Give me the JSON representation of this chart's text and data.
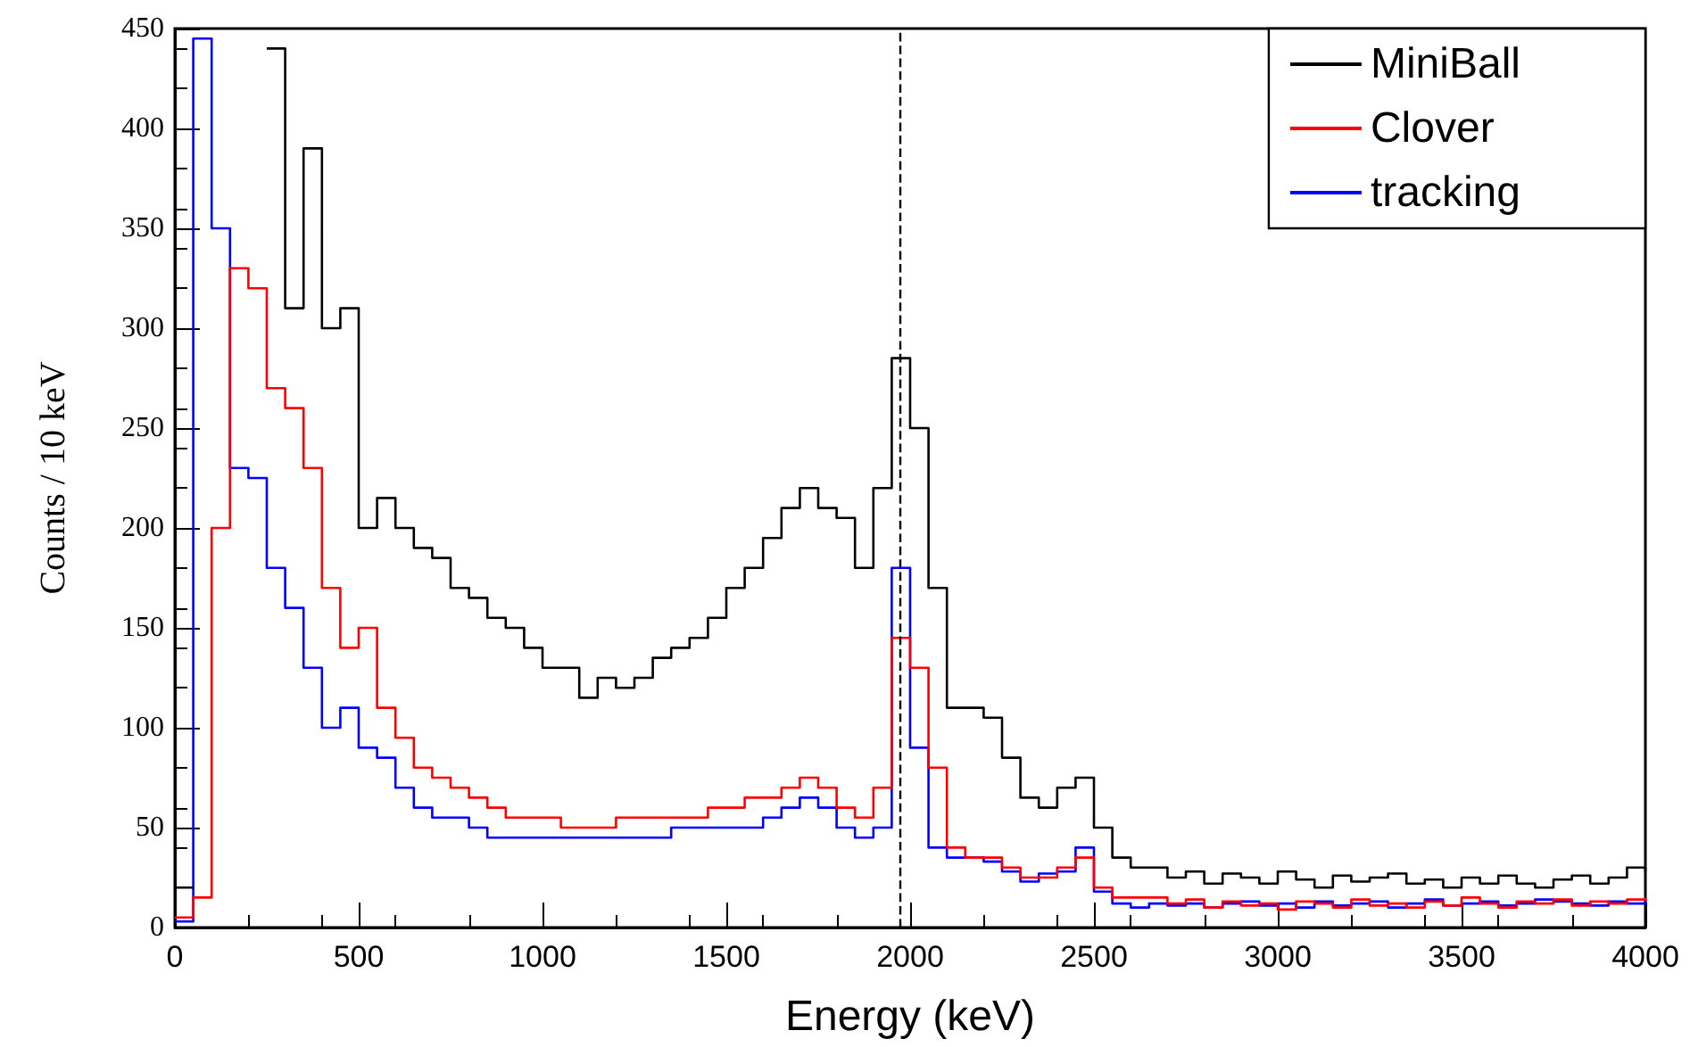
{
  "chart_data": {
    "type": "step",
    "xlabel": "Energy (keV)",
    "ylabel": "Counts / 10 keV",
    "x": [
      0,
      50,
      100,
      150,
      200,
      250,
      300,
      350,
      400,
      450,
      500,
      550,
      600,
      650,
      700,
      750,
      800,
      850,
      900,
      950,
      1000,
      1050,
      1100,
      1150,
      1200,
      1250,
      1300,
      1350,
      1400,
      1450,
      1500,
      1550,
      1600,
      1650,
      1700,
      1750,
      1800,
      1850,
      1900,
      1950,
      2000,
      2050,
      2100,
      2150,
      2200,
      2250,
      2300,
      2350,
      2400,
      2450,
      2500,
      2550,
      2600,
      2650,
      2700,
      2750,
      2800,
      2850,
      2900,
      2950,
      3000,
      3050,
      3100,
      3150,
      3200,
      3250,
      3300,
      3350,
      3400,
      3450,
      3500,
      3550,
      3600,
      3650,
      3700,
      3750,
      3800,
      3850,
      3900,
      3950,
      4000
    ],
    "series": [
      {
        "name": "MiniBall",
        "color": "#000000",
        "values": [
          20,
          null,
          null,
          null,
          null,
          440,
          310,
          390,
          300,
          310,
          200,
          215,
          200,
          190,
          185,
          170,
          165,
          155,
          150,
          140,
          130,
          130,
          115,
          125,
          120,
          125,
          135,
          140,
          145,
          155,
          170,
          180,
          195,
          210,
          220,
          210,
          205,
          180,
          220,
          285,
          250,
          170,
          110,
          110,
          105,
          85,
          65,
          60,
          70,
          75,
          50,
          35,
          30,
          30,
          25,
          28,
          22,
          27,
          25,
          22,
          28,
          24,
          20,
          26,
          23,
          25,
          27,
          22,
          24,
          20,
          25,
          22,
          26,
          22,
          20,
          24,
          26,
          22,
          25,
          30,
          28
        ]
      },
      {
        "name": "Clover",
        "color": "#ff0000",
        "values": [
          5,
          15,
          200,
          330,
          320,
          270,
          260,
          230,
          170,
          140,
          150,
          110,
          95,
          80,
          75,
          70,
          65,
          60,
          55,
          55,
          55,
          50,
          50,
          50,
          55,
          55,
          55,
          55,
          55,
          60,
          60,
          65,
          65,
          70,
          75,
          70,
          60,
          55,
          70,
          145,
          130,
          80,
          40,
          35,
          35,
          30,
          25,
          25,
          30,
          35,
          20,
          15,
          15,
          15,
          12,
          14,
          10,
          13,
          11,
          12,
          9,
          13,
          12,
          10,
          14,
          11,
          12,
          10,
          13,
          11,
          15,
          12,
          10,
          13,
          12,
          14,
          11,
          13,
          12,
          14,
          15
        ]
      },
      {
        "name": "tracking",
        "color": "#0000ff",
        "values": [
          3,
          445,
          350,
          230,
          225,
          180,
          160,
          130,
          100,
          110,
          90,
          85,
          70,
          60,
          55,
          55,
          50,
          45,
          45,
          45,
          45,
          45,
          45,
          45,
          45,
          45,
          45,
          50,
          50,
          50,
          50,
          50,
          55,
          60,
          65,
          60,
          50,
          45,
          50,
          180,
          90,
          40,
          35,
          35,
          33,
          28,
          23,
          27,
          28,
          40,
          18,
          12,
          10,
          12,
          11,
          12,
          10,
          12,
          13,
          11,
          12,
          10,
          13,
          11,
          12,
          13,
          10,
          12,
          14,
          11,
          12,
          13,
          11,
          12,
          14,
          13,
          12,
          11,
          13,
          12,
          14
        ]
      }
    ],
    "xlim": [
      0,
      4000
    ],
    "xticks": [
      0,
      500,
      1000,
      1500,
      2000,
      2500,
      3000,
      3500,
      4000
    ],
    "ylim": [
      0,
      450
    ],
    "yticks": [
      0,
      50,
      100,
      150,
      200,
      250,
      300,
      350,
      400,
      450
    ],
    "ref_lines": [
      {
        "axis": "x",
        "value": 1970,
        "color": "#000000",
        "line_style": "dashed"
      }
    ],
    "grid": false,
    "legend": "top right",
    "marker": "none",
    "line_style": "solid"
  }
}
